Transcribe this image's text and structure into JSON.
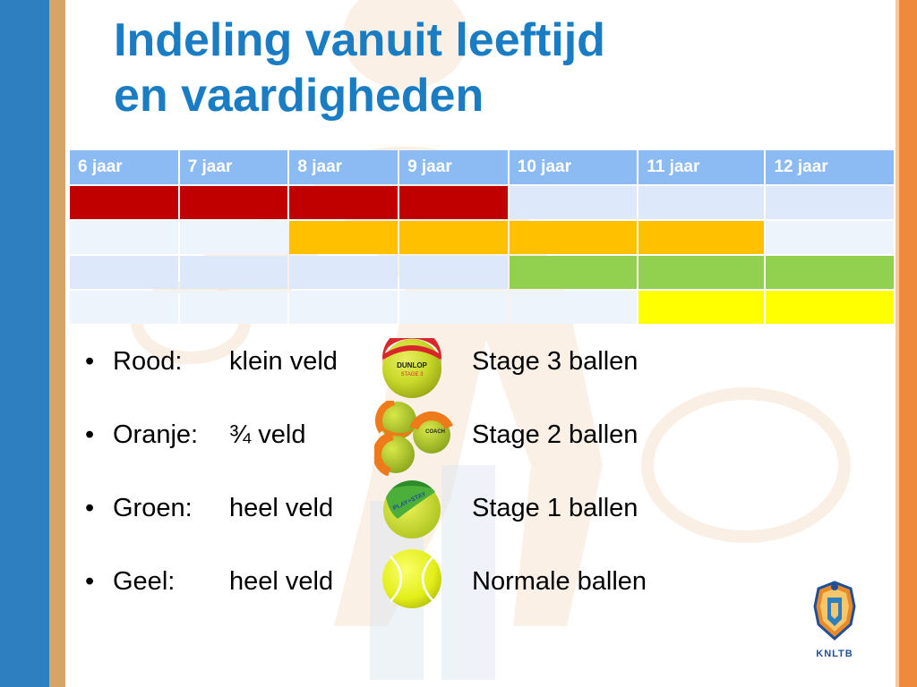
{
  "title": {
    "line1": "Indeling vanuit leeftijd",
    "line2": "en vaardigheden"
  },
  "table": {
    "headers": [
      "6 jaar",
      "7 jaar",
      "8 jaar",
      "9 jaar",
      "10 jaar",
      "11 jaar",
      "12 jaar"
    ],
    "rows": [
      [
        "red",
        "red",
        "red",
        "red",
        "light1",
        "light1",
        "light1"
      ],
      [
        "light2",
        "light2",
        "orange",
        "orange",
        "orange",
        "orange",
        "light2"
      ],
      [
        "light1",
        "light1",
        "light1",
        "light1",
        "green",
        "green",
        "green"
      ],
      [
        "light2",
        "light2",
        "light2",
        "light2",
        "light2",
        "yellow",
        "yellow"
      ]
    ]
  },
  "colors": {
    "red": "#c00000",
    "orange": "#ffc000",
    "green": "#92d050",
    "yellow": "#ffff00",
    "title": "#1a7dc4",
    "header": "#8bbbf2"
  },
  "list": [
    {
      "bullet": "•",
      "label": "Rood:",
      "field": "klein veld",
      "ball": "Stage 3 ballen",
      "icon": "red-stage3-ball-icon"
    },
    {
      "bullet": "•",
      "label": "Oranje:",
      "field": "¾ veld",
      "ball": "Stage 2 ballen",
      "icon": "orange-stage2-balls-icon"
    },
    {
      "bullet": "•",
      "label": "Groen:",
      "field": "heel veld",
      "ball": "Stage 1 ballen",
      "icon": "green-stage1-ball-icon"
    },
    {
      "bullet": "•",
      "label": "Geel:",
      "field": "heel veld",
      "ball": "Normale ballen",
      "icon": "yellow-tennis-ball-icon"
    }
  ],
  "logo": {
    "text": "KNLTB",
    "icon": "knltb-crest-icon"
  },
  "ball_labels": {
    "dunlop": "DUNLOP",
    "stage": "STAGE 3",
    "coach": "COACH",
    "playstay": "PLAY+STAY"
  }
}
